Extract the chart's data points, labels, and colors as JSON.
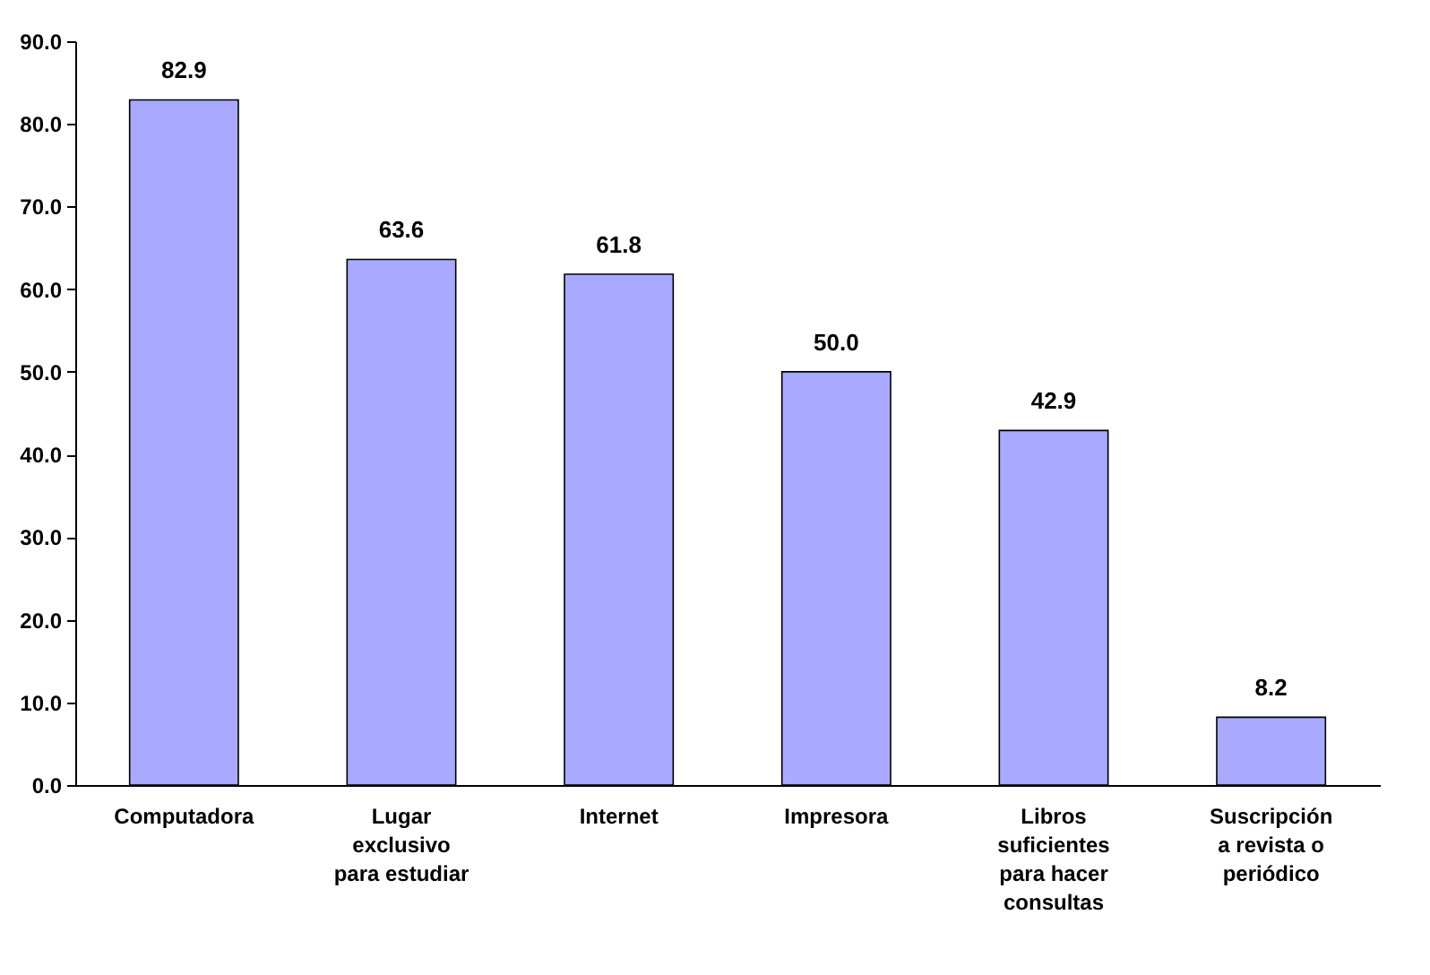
{
  "chart_data": {
    "type": "bar",
    "categories": [
      "Computadora",
      "Lugar exclusivo para estudiar",
      "Internet",
      "Impresora",
      "Libros suficientes para hacer consultas",
      "Suscripción a revista o periódico"
    ],
    "values": [
      82.9,
      63.6,
      61.8,
      50.0,
      42.9,
      8.2
    ],
    "value_labels": [
      "82.9",
      "63.6",
      "61.8",
      "50.0",
      "42.9",
      "8.2"
    ],
    "color": "#a9aaff",
    "ylim": [
      0,
      90
    ],
    "yticks": [
      {
        "value": 0,
        "label": "0.0"
      },
      {
        "value": 10,
        "label": "10.0"
      },
      {
        "value": 20,
        "label": "20.0"
      },
      {
        "value": 30,
        "label": "30.0"
      },
      {
        "value": 40,
        "label": "40.0"
      },
      {
        "value": 50,
        "label": "50.0"
      },
      {
        "value": 60,
        "label": "60.0"
      },
      {
        "value": 70,
        "label": "70.0"
      },
      {
        "value": 80,
        "label": "80.0"
      },
      {
        "value": 90,
        "label": "90.0"
      }
    ],
    "grid": false
  }
}
